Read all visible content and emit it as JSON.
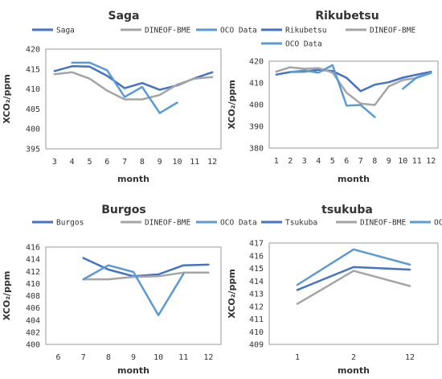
{
  "colors": {
    "station": "#4472C4",
    "dineof": "#A5A5A5",
    "oco": "#5B9BD5"
  },
  "chart_data": [
    {
      "type": "line",
      "title": "Saga",
      "xlabel": "month",
      "ylabel": "XCO₂/ppm",
      "categories": [
        "3",
        "4",
        "5",
        "6",
        "7",
        "8",
        "9",
        "10",
        "11",
        "12"
      ],
      "ylim": [
        395,
        420
      ],
      "yticks": [
        395,
        400,
        405,
        410,
        415,
        420
      ],
      "grid": false,
      "legend": "top",
      "series": [
        {
          "name": "Saga",
          "color_key": "station",
          "values": [
            414.5,
            415.7,
            415.6,
            413.3,
            410.2,
            411.5,
            409.8,
            410.9,
            412.7,
            414.2
          ]
        },
        {
          "name": "DINEOF-BME",
          "color_key": "dineof",
          "values": [
            413.7,
            414.2,
            412.6,
            409.6,
            407.4,
            407.4,
            408.5,
            411.1,
            412.6,
            413.0
          ]
        },
        {
          "name": "OCO Data",
          "color_key": "oco",
          "values": [
            null,
            416.6,
            416.6,
            414.7,
            408.0,
            410.5,
            404.0,
            406.6,
            null,
            null
          ]
        }
      ]
    },
    {
      "type": "line",
      "title": "Rikubetsu",
      "xlabel": "month",
      "ylabel": "XCO₂/ppm",
      "categories": [
        "1",
        "2",
        "3",
        "4",
        "5",
        "6",
        "7",
        "8",
        "9",
        "10",
        "11",
        "12"
      ],
      "ylim": [
        380,
        420
      ],
      "yticks": [
        380,
        390,
        400,
        410,
        420
      ],
      "grid": false,
      "legend": "top",
      "series": [
        {
          "name": "Rikubetsu",
          "color_key": "station",
          "values": [
            413.8,
            415.0,
            415.2,
            416.0,
            415.5,
            412.3,
            406.2,
            409.2,
            410.3,
            412.4,
            413.8,
            415.1
          ]
        },
        {
          "name": "DINEOF-BME",
          "color_key": "dineof",
          "values": [
            415.2,
            417.2,
            416.5,
            416.8,
            414.7,
            405.5,
            400.5,
            399.8,
            408.4,
            411.3,
            412.3,
            414.6
          ]
        },
        {
          "name": "OCO Data",
          "color_key": "oco",
          "values": [
            null,
            415.0,
            415.7,
            414.7,
            418.2,
            399.5,
            399.8,
            394.3,
            null,
            407.3,
            412.6,
            414.5
          ]
        }
      ]
    },
    {
      "type": "line",
      "title": "Burgos",
      "xlabel": "month",
      "ylabel": "XCO₂/ppm",
      "categories": [
        "6",
        "7",
        "8",
        "9",
        "10",
        "11",
        "12"
      ],
      "ylim": [
        400,
        416
      ],
      "yticks": [
        400,
        402,
        404,
        406,
        408,
        410,
        412,
        414,
        416
      ],
      "grid": false,
      "legend": "top",
      "series": [
        {
          "name": "Burgos",
          "color_key": "station",
          "values": [
            null,
            414.2,
            412.3,
            411.2,
            411.5,
            413.0,
            413.1
          ]
        },
        {
          "name": "DINEOF-BME",
          "color_key": "dineof",
          "values": [
            null,
            410.7,
            410.7,
            411.1,
            411.2,
            411.8,
            411.8
          ]
        },
        {
          "name": "OCO Data",
          "color_key": "oco",
          "values": [
            null,
            410.7,
            413.0,
            411.9,
            404.8,
            411.6,
            null
          ]
        }
      ]
    },
    {
      "type": "line",
      "title": "tsukuba",
      "xlabel": "month",
      "ylabel": "XCO₂/ppm",
      "categories": [
        "1",
        "2",
        "12"
      ],
      "ylim": [
        409,
        417
      ],
      "yticks": [
        409,
        410,
        411,
        412,
        413,
        414,
        415,
        416,
        417
      ],
      "grid": false,
      "legend": "top",
      "series": [
        {
          "name": "Tsukuba",
          "color_key": "station",
          "values": [
            413.3,
            415.1,
            414.9
          ]
        },
        {
          "name": "DINEOF-BME",
          "color_key": "dineof",
          "values": [
            412.2,
            414.8,
            413.6
          ]
        },
        {
          "name": "OCO Data",
          "color_key": "oco",
          "values": [
            413.7,
            416.5,
            415.3
          ]
        }
      ]
    }
  ]
}
